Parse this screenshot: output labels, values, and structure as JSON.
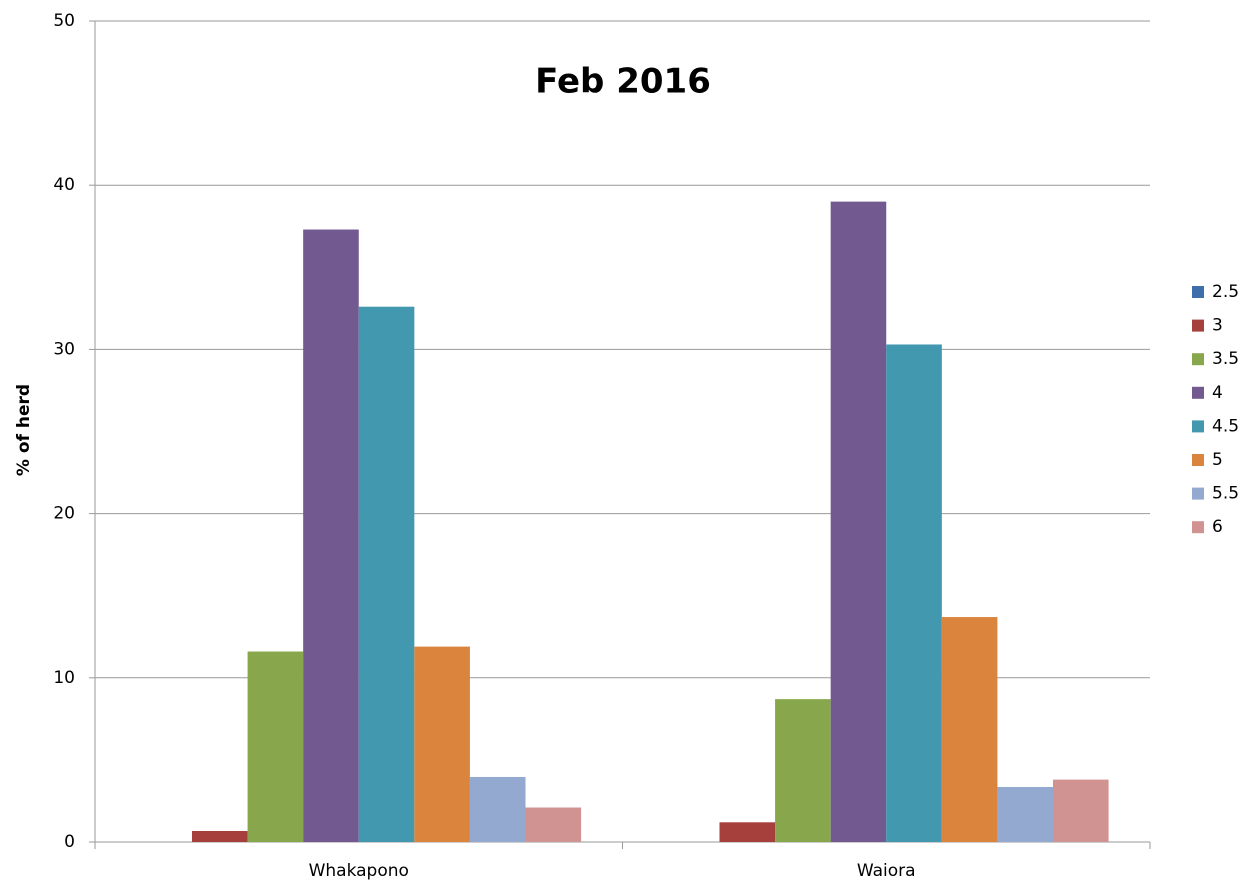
{
  "chart_data": {
    "type": "bar",
    "title": "Feb 2016",
    "y_label": "% of herd",
    "categories": [
      "Whakapono",
      "Waiora"
    ],
    "series": [
      {
        "name": "2.5",
        "color": "#3e6fab",
        "values": [
          0,
          0
        ]
      },
      {
        "name": "3",
        "color": "#a5403d",
        "values": [
          0.67,
          1.2
        ]
      },
      {
        "name": "3.5",
        "color": "#88a64b",
        "values": [
          11.6,
          8.7
        ]
      },
      {
        "name": "4",
        "color": "#725990",
        "values": [
          37.3,
          39.0
        ]
      },
      {
        "name": "4.5",
        "color": "#4198af",
        "values": [
          32.6,
          30.3
        ]
      },
      {
        "name": "5",
        "color": "#db843d",
        "values": [
          11.9,
          13.7
        ]
      },
      {
        "name": "5.5",
        "color": "#93a9d0",
        "values": [
          3.96,
          3.35
        ]
      },
      {
        "name": "6",
        "color": "#d19392",
        "values": [
          2.1,
          3.8
        ]
      }
    ],
    "ylim": [
      0,
      50
    ],
    "yticks": [
      0,
      10,
      20,
      30,
      40,
      50
    ],
    "grid": true,
    "legend": "right"
  }
}
